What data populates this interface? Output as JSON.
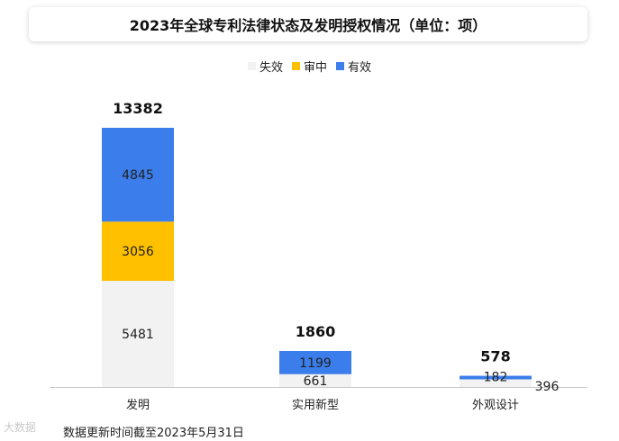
{
  "chart_data": {
    "type": "bar",
    "stacked": true,
    "title": "2023年全球专利法律状态及发明授权情况（单位：项）",
    "categories": [
      "发明",
      "实用新型",
      "外观设计"
    ],
    "series": [
      {
        "name": "失效",
        "color": "#f2f2f2",
        "values": [
          5481,
          661,
          396
        ]
      },
      {
        "name": "审中",
        "color": "#ffc000",
        "values": [
          3056,
          0,
          0
        ]
      },
      {
        "name": "有效",
        "color": "#3b7deb",
        "values": [
          4845,
          1199,
          182
        ]
      }
    ],
    "totals": [
      13382,
      1860,
      578
    ],
    "segment_labels": [
      [
        "5481",
        "3056",
        "4845"
      ],
      [
        "661",
        "",
        "1199"
      ],
      [
        "396",
        "",
        "182"
      ]
    ],
    "ylim": [
      0,
      13382
    ],
    "legend_position": "top-center",
    "grid": false
  },
  "footnote": "数据更新时间截至2023年5月31日",
  "watermark_bottom_left": "大数据"
}
